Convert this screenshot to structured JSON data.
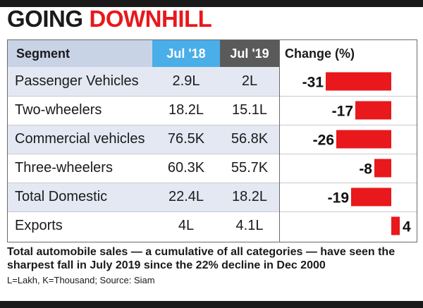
{
  "colors": {
    "bar_red": "#e8181c",
    "title_red": "#e8181c",
    "header_jul18": "#4aaee8",
    "header_jul19": "#5a5a5a",
    "header_bg": "#c8d3e6",
    "row_stripe": "#e3e8f3",
    "rule": "#1a1a1a"
  },
  "title": {
    "part1": "GOING",
    "part2": "DOWNHILL"
  },
  "header": {
    "segment": "Segment",
    "jul18": "Jul '18",
    "jul19": "Jul '19",
    "change": "Change (%)"
  },
  "footer": {
    "note": "Total automobile sales — a cumulative of all categories — have seen the sharpest fall in July 2019 since the 22% decline in Dec 2000",
    "source": "L=Lakh, K=Thousand; Source: Siam"
  },
  "chart_data": {
    "type": "table",
    "title": "GOING DOWNHILL",
    "columns": [
      "Segment",
      "Jul '18",
      "Jul '19",
      "Change (%)"
    ],
    "rows": [
      {
        "segment": "Passenger Vehicles",
        "jul18": "2.9L",
        "jul19": "2L",
        "change": -31,
        "change_label": "-31"
      },
      {
        "segment": "Two-wheelers",
        "jul18": "18.2L",
        "jul19": "15.1L",
        "change": -17,
        "change_label": "-17"
      },
      {
        "segment": "Commercial vehicles",
        "jul18": "76.5K",
        "jul19": "56.8K",
        "change": -26,
        "change_label": "-26"
      },
      {
        "segment": "Three-wheelers",
        "jul18": "60.3K",
        "jul19": "55.7K",
        "change": -8,
        "change_label": "-8"
      },
      {
        "segment": "Total Domestic",
        "jul18": "22.4L",
        "jul19": "18.2L",
        "change": -19,
        "change_label": "-19"
      },
      {
        "segment": "Exports",
        "jul18": "4L",
        "jul19": "4.1L",
        "change": 4,
        "change_label": "4"
      }
    ]
  }
}
